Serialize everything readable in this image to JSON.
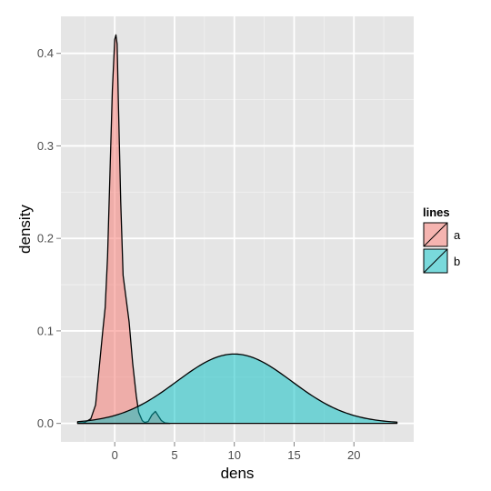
{
  "chart_data": {
    "type": "area",
    "xlabel": "dens",
    "ylabel": "density",
    "xlim": [
      -4.5,
      25
    ],
    "ylim": [
      -0.02,
      0.44
    ],
    "x_ticks": [
      0,
      5,
      10,
      15,
      20
    ],
    "y_ticks": [
      0.0,
      0.1,
      0.2,
      0.3,
      0.4
    ],
    "x_tick_labels": [
      "0",
      "5",
      "10",
      "15",
      "20"
    ],
    "y_tick_labels": [
      "0.0",
      "0.1",
      "0.2",
      "0.3",
      "0.4"
    ],
    "grid": true,
    "panel_background": "#e5e5e5",
    "grid_color": "#ffffff",
    "legend": {
      "title": "lines",
      "position": "right",
      "entries": [
        {
          "label": "a",
          "color": "#f8766d"
        },
        {
          "label": "b",
          "color": "#00bfc4"
        }
      ]
    },
    "series": [
      {
        "name": "a",
        "color": "#f8766d",
        "x": [
          -3.1,
          -2.5,
          -2.0,
          -1.6,
          -1.3,
          -1.0,
          -0.8,
          -0.6,
          -0.4,
          -0.2,
          0.0,
          0.1,
          0.2,
          0.3,
          0.5,
          0.7,
          0.9,
          1.2,
          1.5,
          1.8,
          2.0,
          2.3,
          2.5,
          2.8,
          3.1,
          3.4,
          3.6,
          3.9,
          4.2,
          4.6
        ],
        "y": [
          0.0,
          0.001,
          0.005,
          0.02,
          0.06,
          0.1,
          0.125,
          0.18,
          0.27,
          0.36,
          0.415,
          0.42,
          0.41,
          0.35,
          0.24,
          0.16,
          0.14,
          0.11,
          0.065,
          0.03,
          0.012,
          0.003,
          0.001,
          0.002,
          0.009,
          0.013,
          0.009,
          0.003,
          0.0005,
          0.0
        ]
      },
      {
        "name": "b",
        "color": "#00bfc4",
        "x": [
          -3.1,
          23.6
        ],
        "mean": 10.0,
        "sd": 4.8,
        "peak": 0.075
      }
    ]
  }
}
